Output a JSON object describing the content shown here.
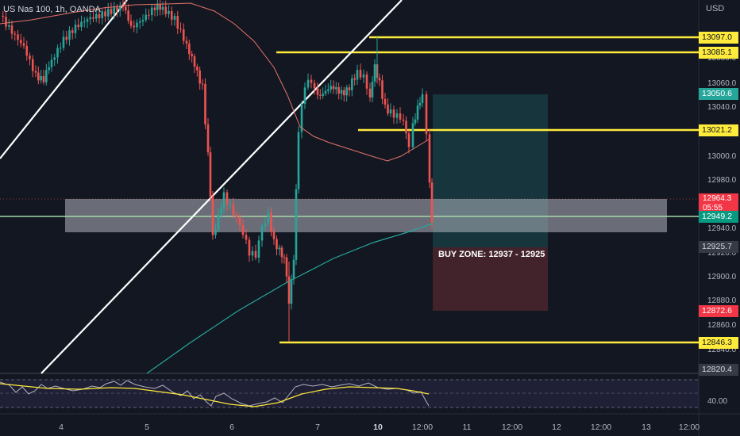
{
  "header": {
    "symbol_title": "US Nas 100, 1h, OANDA",
    "currency": "USD"
  },
  "price_scale": {
    "ticks": [
      "13080.0",
      "13060.0",
      "13040.0",
      "13000.0",
      "12980.0",
      "12940.0",
      "12920.0",
      "12900.0",
      "12880.0",
      "12860.0",
      "12840.0"
    ]
  },
  "price_tags": {
    "level_1": "13097.0",
    "level_2": "13085.1",
    "current_high": "13050.6",
    "level_3": "13021.2",
    "last_price": "12964.3",
    "countdown": "05:55",
    "green_line": "12949.2",
    "gray_level": "12925.7",
    "red_level": "12872.6",
    "level_4": "12846.3",
    "lower": "12820.4"
  },
  "annotation": {
    "buy_zone": "BUY ZONE: 12937 - 12925"
  },
  "time_axis": {
    "labels": [
      "4",
      "5",
      "6",
      "7",
      "10",
      "12:00",
      "11",
      "12:00",
      "12",
      "12:00",
      "13",
      "12:00"
    ]
  },
  "oscillator": {
    "tick": "40.00"
  },
  "colors": {
    "background": "#131722",
    "up_candle": "#26a69a",
    "down_candle": "#ef5350",
    "level_line": "#ffeb3b",
    "trend_line": "#ffffff",
    "ma_red": "#e57368",
    "ma_teal": "#26a69a",
    "rsi_line": "#ffeb3b"
  }
}
